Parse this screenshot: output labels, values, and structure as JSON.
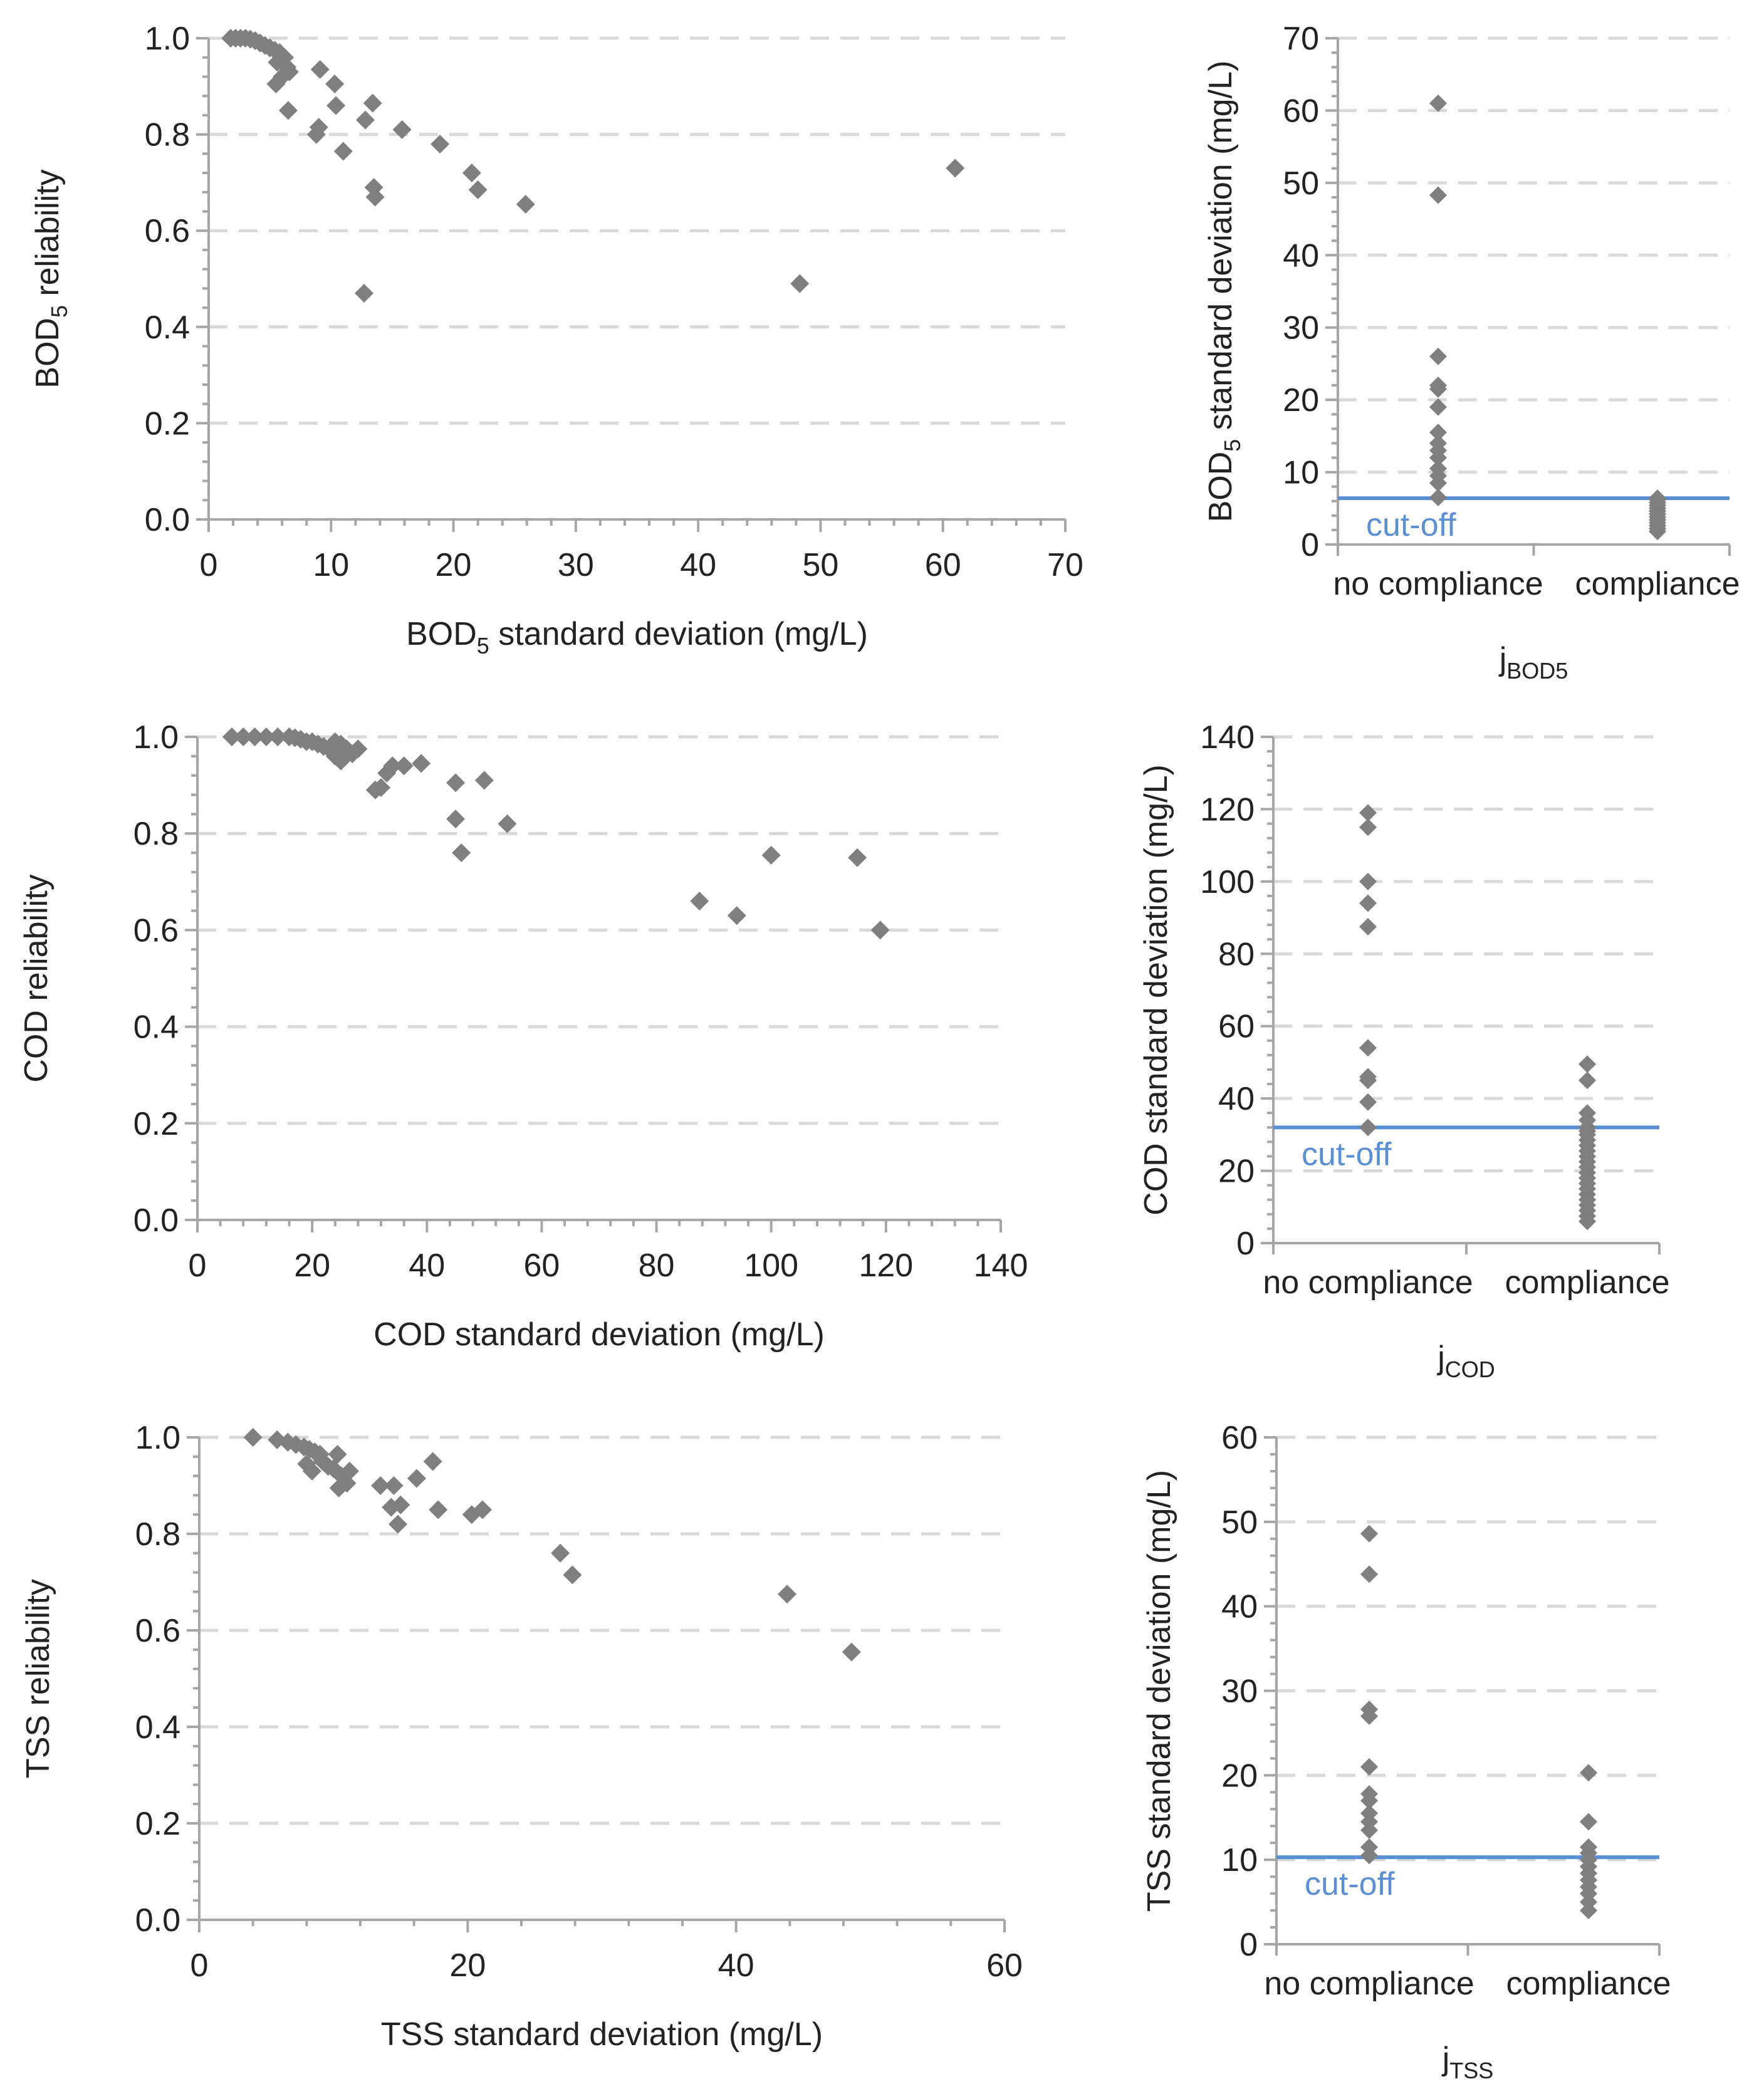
{
  "colors": {
    "marker": "#7f7f7f",
    "axis": "#a6a6a6",
    "grid": "#d9d9d9",
    "cutoff": "#5b8fd3",
    "text": "#222222"
  },
  "chart_data": [
    {
      "id": "bod-scatter",
      "type": "scatter",
      "title": "",
      "xlabel": {
        "main": "BOD",
        "sub": "5",
        "rest": " standard deviation (mg/L)"
      },
      "ylabel": {
        "main": "BOD",
        "sub": "5",
        "rest": " reliability"
      },
      "xlim": [
        0,
        70
      ],
      "ylim": [
        0,
        1
      ],
      "xticks": [
        0,
        10,
        20,
        30,
        40,
        50,
        60,
        70
      ],
      "xtick_labels": [
        "0",
        "10",
        "20",
        "30",
        "40",
        "50",
        "60",
        "70"
      ],
      "yticks": [
        0,
        0.2,
        0.4,
        0.6,
        0.8,
        1.0
      ],
      "ytick_labels": [
        "0.0",
        "0.2",
        "0.4",
        "0.6",
        "0.8",
        "1.0"
      ],
      "grid": "y-dashed",
      "marker": "diamond",
      "points": [
        [
          1.8,
          1.0
        ],
        [
          2.2,
          1.0
        ],
        [
          2.6,
          1.0
        ],
        [
          3.0,
          1.0
        ],
        [
          3.4,
          0.998
        ],
        [
          3.8,
          0.995
        ],
        [
          4.2,
          0.99
        ],
        [
          4.6,
          0.985
        ],
        [
          5.0,
          0.98
        ],
        [
          5.4,
          0.975
        ],
        [
          5.8,
          0.97
        ],
        [
          6.2,
          0.96
        ],
        [
          6.4,
          0.94
        ],
        [
          5.6,
          0.95
        ],
        [
          6.6,
          0.93
        ],
        [
          5.5,
          0.905
        ],
        [
          6.0,
          0.92
        ],
        [
          6.5,
          0.85
        ],
        [
          8.8,
          0.8
        ],
        [
          9.0,
          0.815
        ],
        [
          9.1,
          0.935
        ],
        [
          10.3,
          0.905
        ],
        [
          10.4,
          0.86
        ],
        [
          11.0,
          0.765
        ],
        [
          12.8,
          0.83
        ],
        [
          13.4,
          0.865
        ],
        [
          13.5,
          0.69
        ],
        [
          13.6,
          0.67
        ],
        [
          12.7,
          0.47
        ],
        [
          15.8,
          0.81
        ],
        [
          18.9,
          0.78
        ],
        [
          21.5,
          0.72
        ],
        [
          22.0,
          0.685
        ],
        [
          25.9,
          0.655
        ],
        [
          48.3,
          0.49
        ],
        [
          61.0,
          0.73
        ]
      ]
    },
    {
      "id": "bod-strip",
      "type": "scatter",
      "title": "",
      "xlabel": {
        "main": "j",
        "sub": "BOD5",
        "rest": ""
      },
      "ylabel": {
        "main": "BOD",
        "sub": "5",
        "rest": " standard deviation (mg/L)"
      },
      "categories": [
        "no compliance",
        "compliance"
      ],
      "ylim": [
        0,
        70
      ],
      "yticks": [
        0,
        10,
        20,
        30,
        40,
        50,
        60,
        70
      ],
      "ytick_labels": [
        "0",
        "10",
        "20",
        "30",
        "40",
        "50",
        "60",
        "70"
      ],
      "cutoff": {
        "value": 6.4,
        "label": "cut-off"
      },
      "grid": "y-dashed",
      "marker": "diamond",
      "series": [
        {
          "category": "no compliance",
          "values": [
            6.5,
            8.5,
            9.5,
            10.5,
            12.0,
            13.0,
            14.0,
            15.5,
            19.0,
            21.5,
            22.0,
            26.0,
            48.3,
            61.0
          ]
        },
        {
          "category": "compliance",
          "values": [
            1.8,
            2.2,
            2.6,
            3.0,
            3.4,
            3.8,
            4.2,
            4.6,
            5.0,
            5.4,
            5.8,
            6.2,
            6.4
          ]
        }
      ]
    },
    {
      "id": "cod-scatter",
      "type": "scatter",
      "title": "",
      "xlabel": {
        "main": "COD standard deviation (mg/L)",
        "sub": "",
        "rest": ""
      },
      "ylabel": {
        "main": "COD reliability",
        "sub": "",
        "rest": ""
      },
      "xlim": [
        0,
        140
      ],
      "ylim": [
        0,
        1
      ],
      "xticks": [
        0,
        20,
        40,
        60,
        80,
        100,
        120,
        140
      ],
      "xtick_labels": [
        "0",
        "20",
        "40",
        "60",
        "80",
        "100",
        "120",
        "140"
      ],
      "yticks": [
        0,
        0.2,
        0.4,
        0.6,
        0.8,
        1.0
      ],
      "ytick_labels": [
        "0.0",
        "0.2",
        "0.4",
        "0.6",
        "0.8",
        "1.0"
      ],
      "grid": "y-dashed",
      "marker": "diamond",
      "points": [
        [
          6,
          1.0
        ],
        [
          8,
          1.0
        ],
        [
          10,
          1.0
        ],
        [
          12,
          1.0
        ],
        [
          14,
          1.0
        ],
        [
          16,
          1.0
        ],
        [
          17,
          0.998
        ],
        [
          18,
          0.995
        ],
        [
          19,
          0.99
        ],
        [
          20,
          0.99
        ],
        [
          21,
          0.985
        ],
        [
          22,
          0.98
        ],
        [
          23,
          0.975
        ],
        [
          24,
          0.99
        ],
        [
          25,
          0.985
        ],
        [
          26,
          0.975
        ],
        [
          24,
          0.96
        ],
        [
          25,
          0.95
        ],
        [
          27,
          0.965
        ],
        [
          28,
          0.975
        ],
        [
          31,
          0.89
        ],
        [
          32,
          0.895
        ],
        [
          33,
          0.925
        ],
        [
          34,
          0.94
        ],
        [
          36,
          0.94
        ],
        [
          39,
          0.945
        ],
        [
          45,
          0.905
        ],
        [
          45,
          0.83
        ],
        [
          46,
          0.76
        ],
        [
          50,
          0.91
        ],
        [
          54,
          0.82
        ],
        [
          87.5,
          0.66
        ],
        [
          94,
          0.63
        ],
        [
          100,
          0.755
        ],
        [
          115,
          0.75
        ],
        [
          119,
          0.6
        ]
      ]
    },
    {
      "id": "cod-strip",
      "type": "scatter",
      "title": "",
      "xlabel": {
        "main": "j",
        "sub": "COD",
        "rest": ""
      },
      "ylabel": {
        "main": "COD standard deviation (mg/L)",
        "sub": "",
        "rest": ""
      },
      "categories": [
        "no compliance",
        "compliance"
      ],
      "ylim": [
        0,
        140
      ],
      "yticks": [
        0,
        20,
        40,
        60,
        80,
        100,
        120,
        140
      ],
      "ytick_labels": [
        "0",
        "20",
        "40",
        "60",
        "80",
        "100",
        "120",
        "140"
      ],
      "cutoff": {
        "value": 32,
        "label": "cut-off"
      },
      "grid": "y-dashed",
      "marker": "diamond",
      "series": [
        {
          "category": "no compliance",
          "values": [
            32,
            39,
            45,
            46,
            54,
            87.5,
            94,
            100,
            115,
            119
          ]
        },
        {
          "category": "compliance",
          "values": [
            6,
            7.5,
            9,
            10.5,
            12,
            13.5,
            15,
            16.5,
            18,
            19.5,
            21,
            22.5,
            24,
            25.5,
            27,
            28.5,
            30,
            31,
            32,
            34,
            36,
            45,
            49.5
          ]
        }
      ]
    },
    {
      "id": "tss-scatter",
      "type": "scatter",
      "title": "",
      "xlabel": {
        "main": "TSS standard deviation  (mg/L)",
        "sub": "",
        "rest": ""
      },
      "ylabel": {
        "main": "TSS reliability",
        "sub": "",
        "rest": ""
      },
      "xlim": [
        0,
        60
      ],
      "ylim": [
        0,
        1
      ],
      "xticks": [
        0,
        20,
        40,
        60
      ],
      "xtick_labels": [
        "0",
        "20",
        "40",
        "60"
      ],
      "yticks": [
        0,
        0.2,
        0.4,
        0.6,
        0.8,
        1.0
      ],
      "ytick_labels": [
        "0.0",
        "0.2",
        "0.4",
        "0.6",
        "0.8",
        "1.0"
      ],
      "grid": "y-dashed",
      "marker": "diamond",
      "points": [
        [
          4.0,
          1.0
        ],
        [
          5.8,
          0.995
        ],
        [
          6.6,
          0.99
        ],
        [
          7.2,
          0.985
        ],
        [
          7.8,
          0.98
        ],
        [
          8.2,
          0.975
        ],
        [
          8.6,
          0.97
        ],
        [
          9.0,
          0.965
        ],
        [
          8.0,
          0.945
        ],
        [
          8.4,
          0.93
        ],
        [
          9.2,
          0.95
        ],
        [
          9.6,
          0.94
        ],
        [
          10.0,
          0.935
        ],
        [
          10.3,
          0.965
        ],
        [
          10.6,
          0.92
        ],
        [
          10.4,
          0.895
        ],
        [
          11.0,
          0.905
        ],
        [
          11.2,
          0.93
        ],
        [
          13.5,
          0.9
        ],
        [
          14.5,
          0.9
        ],
        [
          14.3,
          0.855
        ],
        [
          14.8,
          0.82
        ],
        [
          15.0,
          0.86
        ],
        [
          16.2,
          0.915
        ],
        [
          17.4,
          0.95
        ],
        [
          17.8,
          0.85
        ],
        [
          20.3,
          0.84
        ],
        [
          21.1,
          0.85
        ],
        [
          26.9,
          0.76
        ],
        [
          27.8,
          0.715
        ],
        [
          43.8,
          0.675
        ],
        [
          48.6,
          0.555
        ]
      ]
    },
    {
      "id": "tss-strip",
      "type": "scatter",
      "title": "",
      "xlabel": {
        "main": "j",
        "sub": "TSS",
        "rest": ""
      },
      "ylabel": {
        "main": "TSS standard deviation  (mg/L)",
        "sub": "",
        "rest": ""
      },
      "categories": [
        "no compliance",
        "compliance"
      ],
      "ylim": [
        0,
        60
      ],
      "yticks": [
        0,
        10,
        20,
        30,
        40,
        50,
        60
      ],
      "ytick_labels": [
        "0",
        "10",
        "20",
        "30",
        "40",
        "50",
        "60"
      ],
      "cutoff": {
        "value": 10.3,
        "label": "cut-off"
      },
      "grid": "y-dashed",
      "marker": "diamond",
      "series": [
        {
          "category": "no compliance",
          "values": [
            10.5,
            11.5,
            13.5,
            14.5,
            15.5,
            17.0,
            17.8,
            21.0,
            27.0,
            27.8,
            43.8,
            48.6
          ]
        },
        {
          "category": "compliance",
          "values": [
            4.0,
            5.0,
            6.0,
            6.8,
            7.6,
            8.4,
            9.2,
            10.0,
            10.8,
            11.5,
            14.5,
            20.3
          ]
        }
      ]
    }
  ]
}
